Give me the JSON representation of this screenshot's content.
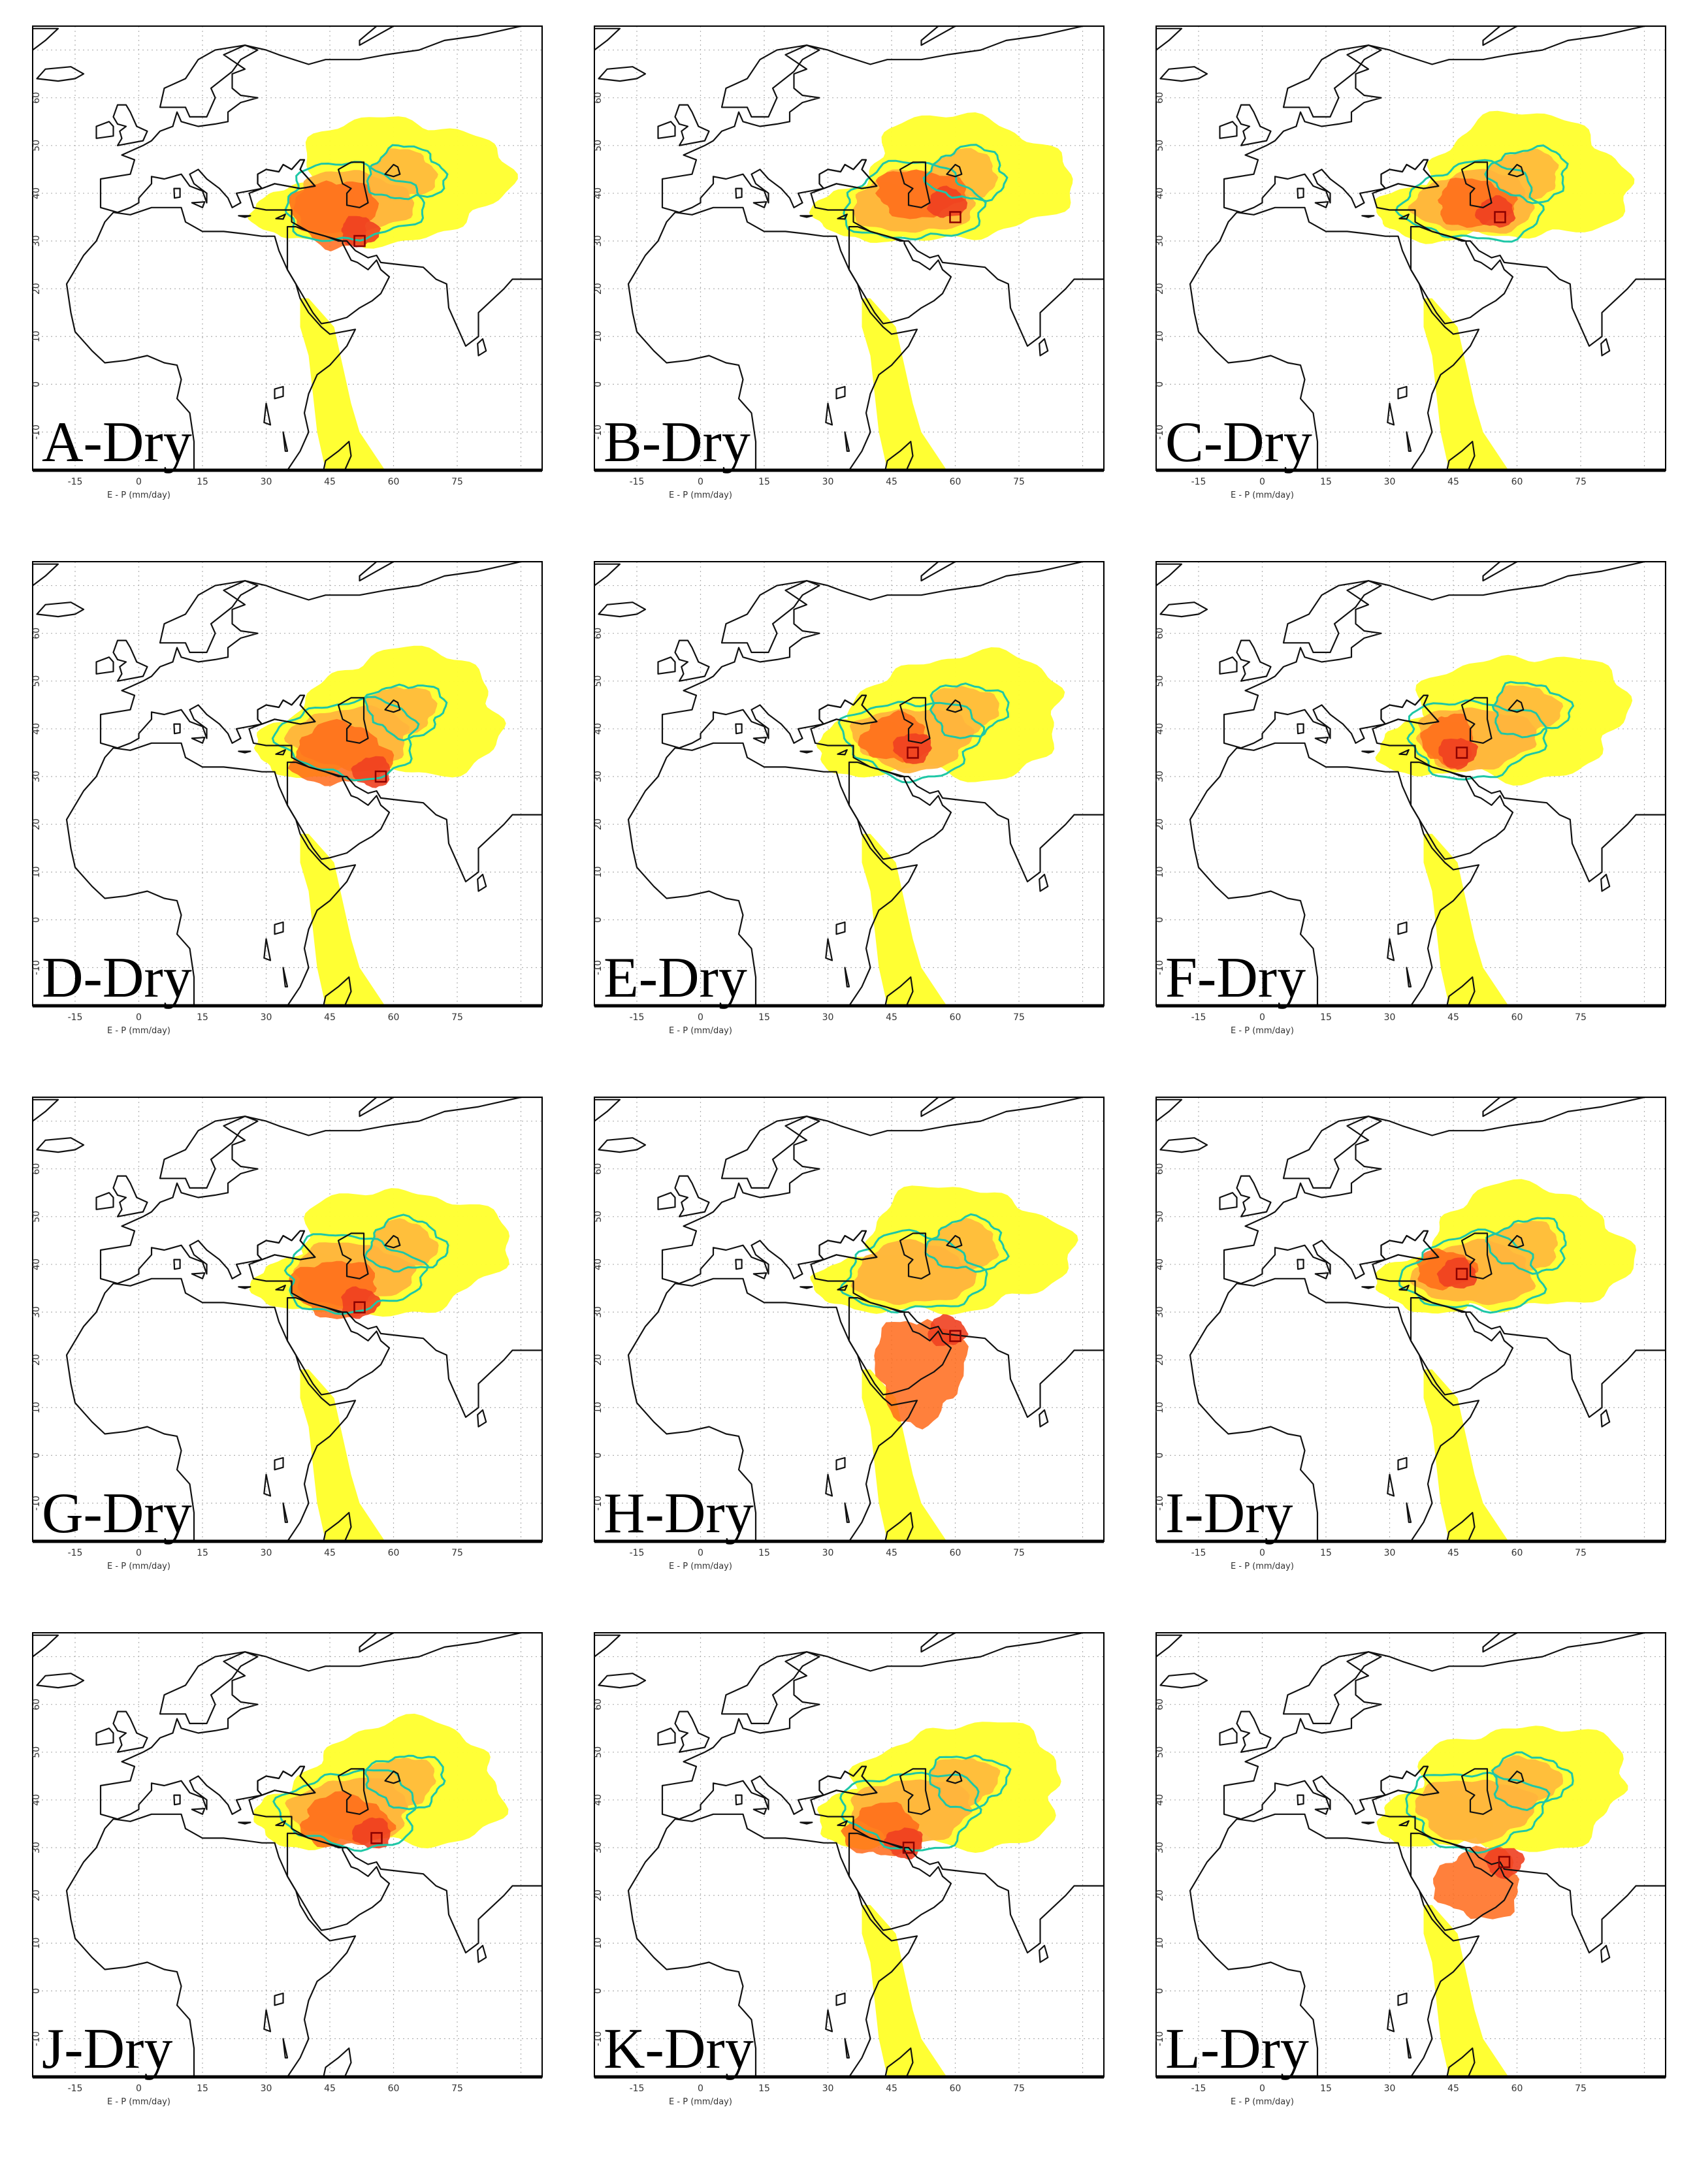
{
  "figure": {
    "panels": [
      {
        "label": "A-Dry",
        "x_axis_caption": "E - P (mm/day)",
        "box": [
          52,
          30
        ],
        "core": [
          [
            52,
            32
          ],
          [
            40,
            40
          ]
        ],
        "has_south_plume": true
      },
      {
        "label": "B-Dry",
        "x_axis_caption": "E - P (mm/day)",
        "box": [
          60,
          35
        ],
        "core": [
          [
            58,
            38
          ],
          [
            45,
            42
          ]
        ],
        "has_south_plume": true
      },
      {
        "label": "C-Dry",
        "x_axis_caption": "E - P (mm/day)",
        "box": [
          56,
          35
        ],
        "core": [
          [
            55,
            36
          ],
          [
            45,
            40
          ]
        ],
        "has_south_plume": true
      },
      {
        "label": "D-Dry",
        "x_axis_caption": "E - P (mm/day)",
        "box": [
          57,
          30
        ],
        "core": [
          [
            55,
            31
          ],
          [
            40,
            38
          ]
        ],
        "has_south_plume": true
      },
      {
        "label": "E-Dry",
        "x_axis_caption": "E - P (mm/day)",
        "box": [
          50,
          35
        ],
        "core": [
          [
            50,
            36
          ],
          [
            42,
            40
          ]
        ],
        "has_south_plume": true
      },
      {
        "label": "F-Dry",
        "x_axis_caption": "E - P (mm/day)",
        "box": [
          47,
          35
        ],
        "core": [
          [
            46,
            35
          ],
          [
            42,
            40
          ]
        ],
        "has_south_plume": true
      },
      {
        "label": "G-Dry",
        "x_axis_caption": "E - P (mm/day)",
        "box": [
          52,
          31
        ],
        "core": [
          [
            52,
            32
          ],
          [
            40,
            38
          ]
        ],
        "has_south_plume": true
      },
      {
        "label": "H-Dry",
        "x_axis_caption": "E - P (mm/day)",
        "box": [
          60,
          25
        ],
        "core": [
          [
            58,
            26
          ],
          [
            45,
            10
          ]
        ],
        "has_south_plume": true
      },
      {
        "label": "I-Dry",
        "x_axis_caption": "E - P (mm/day)",
        "box": [
          47,
          38
        ],
        "core": [
          [
            46,
            38
          ],
          [
            40,
            40
          ]
        ],
        "has_south_plume": true
      },
      {
        "label": "J-Dry",
        "x_axis_caption": "E - P (mm/day)",
        "box": [
          56,
          32
        ],
        "core": [
          [
            55,
            33
          ],
          [
            42,
            38
          ]
        ],
        "has_south_plume": false
      },
      {
        "label": "K-Dry",
        "x_axis_caption": "E - P (mm/day)",
        "box": [
          49,
          30
        ],
        "core": [
          [
            48,
            31
          ],
          [
            38,
            36
          ]
        ],
        "has_south_plume": true
      },
      {
        "label": "L-Dry",
        "x_axis_caption": "E - P (mm/day)",
        "box": [
          57,
          27
        ],
        "core": [
          [
            57,
            27
          ],
          [
            45,
            18
          ]
        ],
        "has_south_plume": true
      }
    ],
    "x_ticks": [
      "-15",
      "0",
      "15",
      "30",
      "45",
      "60",
      "75"
    ],
    "y_ticks": [
      "-10",
      "0",
      "10",
      "20",
      "30",
      "40",
      "50",
      "60"
    ],
    "extent": {
      "lon": [
        -25,
        95
      ],
      "lat": [
        -18,
        75
      ]
    },
    "colors": {
      "low": "#ffff33",
      "mid": "#ffb43c",
      "high": "#ff6a1a",
      "peak": "#f04020",
      "contour": "#1ec7a6",
      "coast": "#111111",
      "grid": "#b0b0b0",
      "box": "#8b0000"
    }
  }
}
